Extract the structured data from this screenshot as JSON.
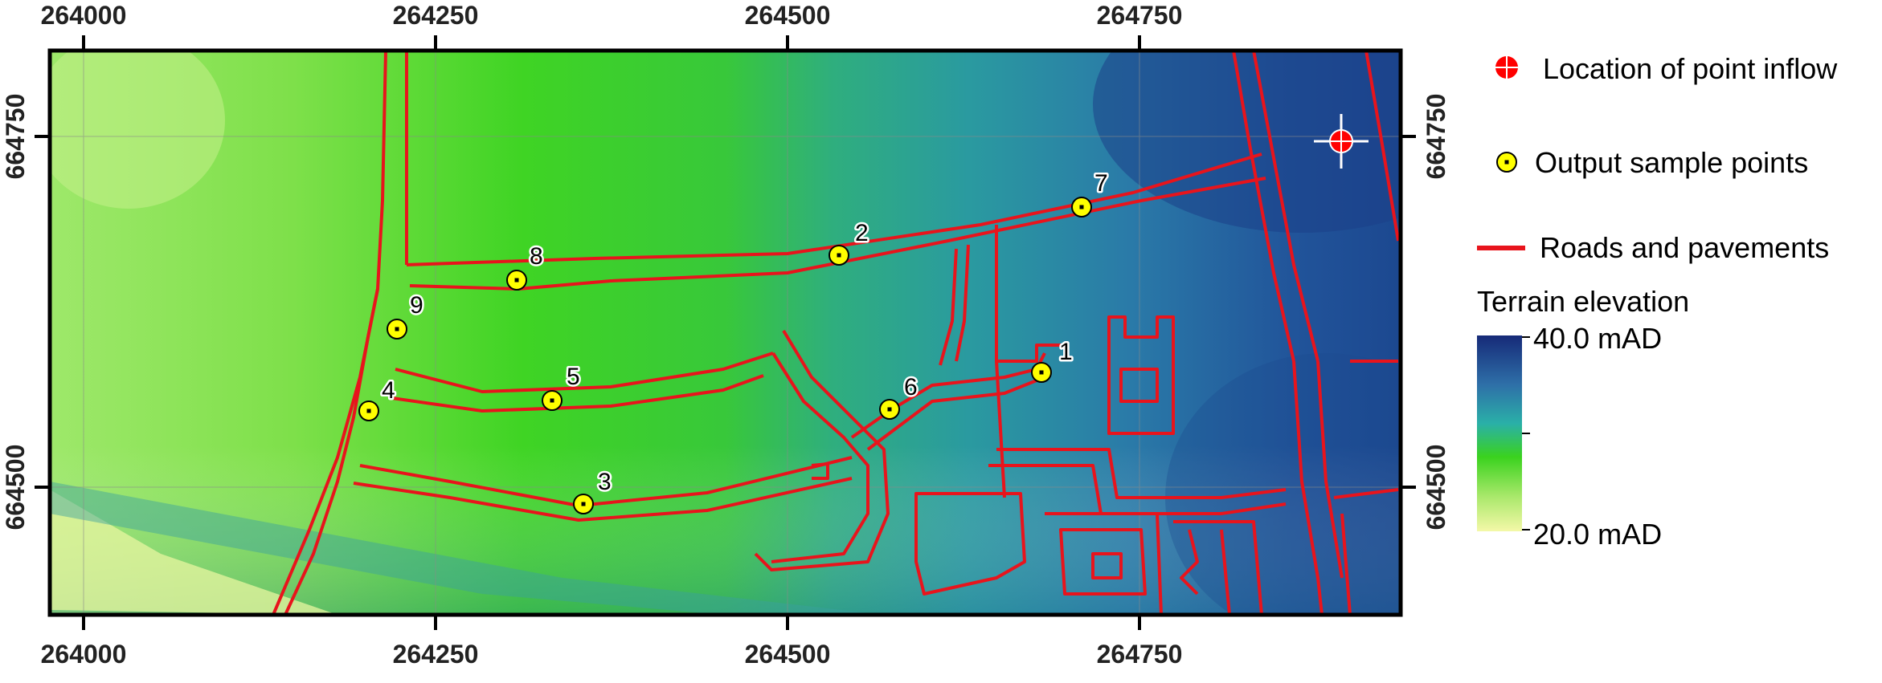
{
  "axes": {
    "x_ticks": [
      "264000",
      "264250",
      "264500",
      "264750"
    ],
    "y_ticks": [
      "664750",
      "664500"
    ]
  },
  "sample_points": [
    {
      "id": "1"
    },
    {
      "id": "2"
    },
    {
      "id": "3"
    },
    {
      "id": "4"
    },
    {
      "id": "5"
    },
    {
      "id": "6"
    },
    {
      "id": "7"
    },
    {
      "id": "8"
    },
    {
      "id": "9"
    }
  ],
  "legend": {
    "inflow_label": "Location of point inflow",
    "sample_label": "Output sample points",
    "roads_label": "Roads and pavements",
    "elevation_title": "Terrain elevation",
    "elevation_max": "40.0 mAD",
    "elevation_min": "20.0 mAD"
  },
  "colors": {
    "roads": "#e8141c",
    "inflow": "#ff0000",
    "sample_fill": "#ffff00",
    "elev_high": "#162a78",
    "elev_mid": "#3ad21e",
    "elev_low": "#f4f8a8"
  }
}
